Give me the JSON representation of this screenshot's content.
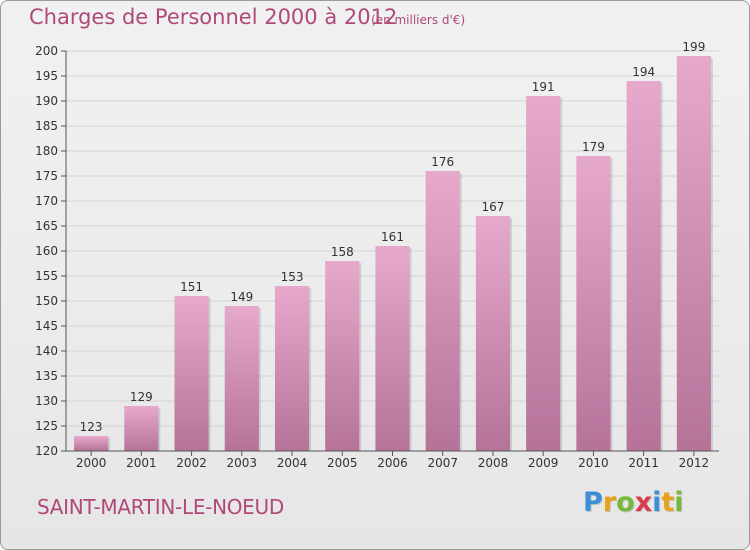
{
  "title": "Charges de Personnel 2000 à 2012",
  "subtitle": "(en milliers d'€)",
  "town": "SAINT-MARTIN-LE-NOEUD",
  "logo": {
    "letters": [
      "P",
      "r",
      "o",
      "x",
      "i",
      "t",
      "i"
    ],
    "colors": [
      "#3a8fd6",
      "#e8a21a",
      "#77b83a",
      "#d93b4a",
      "#3a8fd6",
      "#e8a21a",
      "#77b83a"
    ]
  },
  "colors": {
    "accent": "#b0497a",
    "bar_top": "#e6a9cc",
    "bar_bottom": "#b5739a",
    "grid": "#d4d4d4"
  },
  "chart_data": {
    "type": "bar",
    "categories": [
      "2000",
      "2001",
      "2002",
      "2003",
      "2004",
      "2005",
      "2006",
      "2007",
      "2008",
      "2009",
      "2010",
      "2011",
      "2012"
    ],
    "values": [
      123,
      129,
      151,
      149,
      153,
      158,
      161,
      176,
      167,
      191,
      179,
      194,
      199
    ],
    "ylim": [
      120,
      200
    ],
    "yticks": [
      120,
      125,
      130,
      135,
      140,
      145,
      150,
      155,
      160,
      165,
      170,
      175,
      180,
      185,
      190,
      195,
      200
    ],
    "grid": true,
    "xlabel": "",
    "ylabel": ""
  }
}
